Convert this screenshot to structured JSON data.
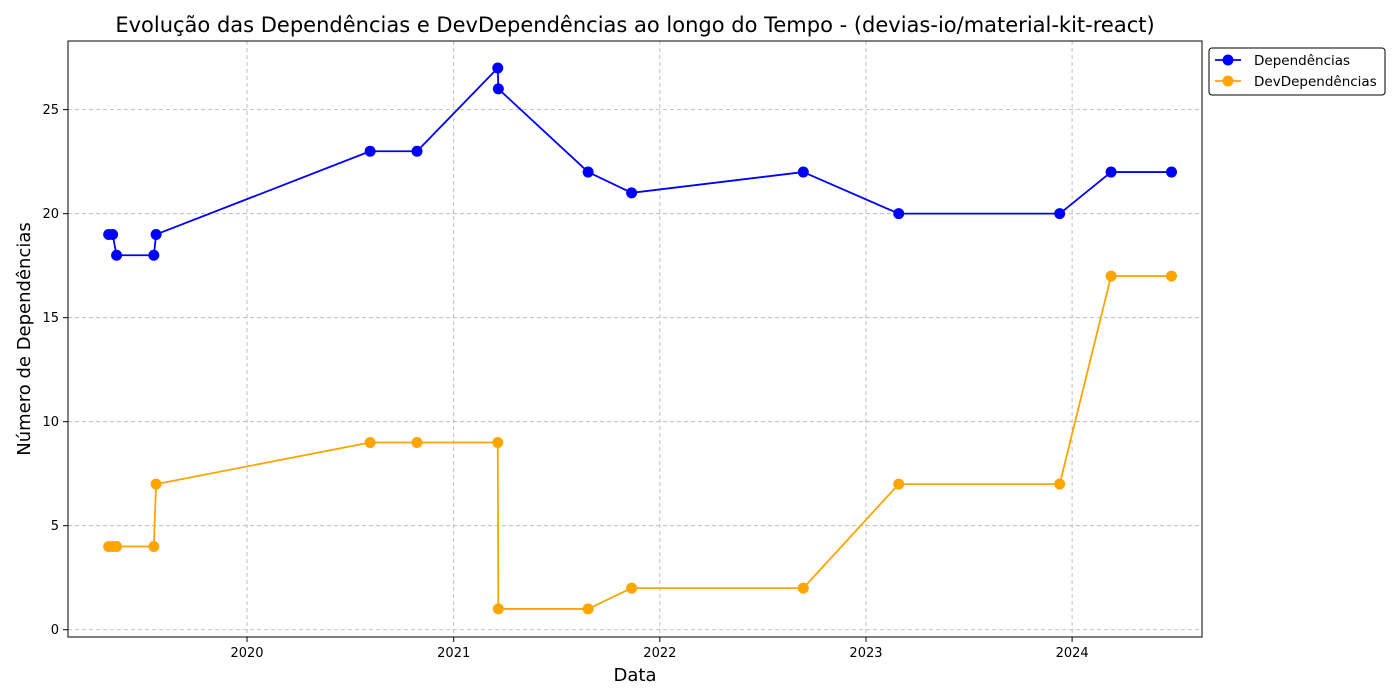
{
  "chart_data": {
    "type": "line",
    "title": "Evolução das Dependências e DevDependências ao longo do Tempo - (devias-io/material-kit-react)",
    "xlabel": "Data",
    "ylabel": "Número de Dependências",
    "xlim": [
      "2019-02-18",
      "2024-08-18"
    ],
    "ylim": [
      -0.35,
      28.3
    ],
    "x_ticks": [
      "2020",
      "2021",
      "2022",
      "2023",
      "2024"
    ],
    "y_ticks": [
      0,
      5,
      10,
      15,
      20,
      25
    ],
    "grid": true,
    "legend_position": "upper right, outside plot area",
    "x": [
      "2019-05-01",
      "2019-05-08",
      "2019-05-15",
      "2019-07-20",
      "2019-07-24",
      "2020-08-06",
      "2020-10-28",
      "2021-03-20",
      "2021-03-21",
      "2021-08-27",
      "2021-11-12",
      "2022-09-12",
      "2023-02-28",
      "2023-12-10",
      "2024-03-10",
      "2024-06-25"
    ],
    "series": [
      {
        "name": "Dependências",
        "color": "#0000ff",
        "values": [
          19,
          19,
          18,
          18,
          19,
          23,
          23,
          27,
          26,
          22,
          21,
          22,
          20,
          20,
          22,
          22
        ]
      },
      {
        "name": "DevDependências",
        "color": "#ffa500",
        "values": [
          4,
          4,
          4,
          4,
          7,
          9,
          9,
          9,
          1,
          1,
          2,
          2,
          7,
          7,
          17,
          17
        ]
      }
    ]
  }
}
